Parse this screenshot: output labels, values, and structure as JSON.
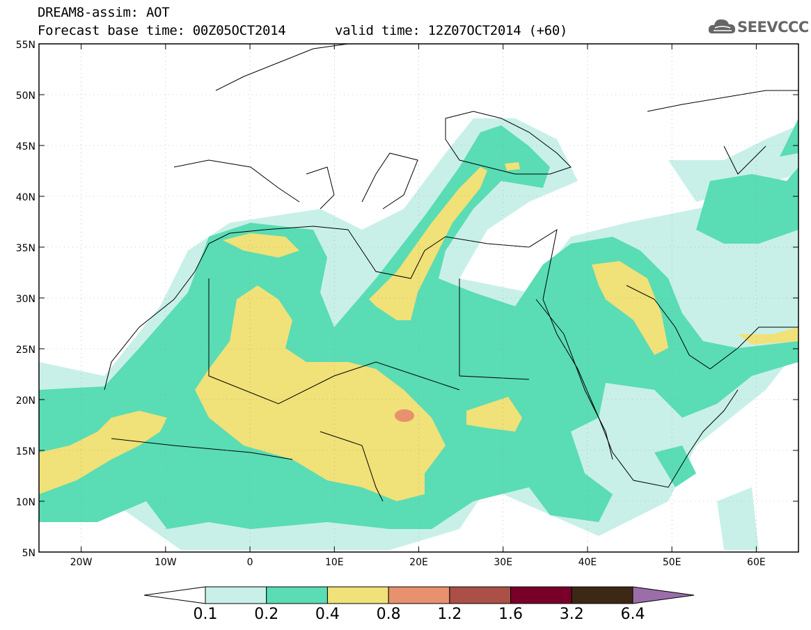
{
  "header": {
    "title_line1": "DREAM8-assim: AOT",
    "title_line2": "Forecast base time: 00Z05OCT2014",
    "valid_time": "valid time: 12Z07OCT2014 (+60)"
  },
  "logo": {
    "text": "SEEVCCC",
    "icon": "cloud-icon"
  },
  "map": {
    "extent": {
      "lon_min": -25,
      "lon_max": 65,
      "lat_min": 5,
      "lat_max": 55
    },
    "lat_labels": [
      "5N",
      "10N",
      "15N",
      "20N",
      "25N",
      "30N",
      "35N",
      "40N",
      "45N",
      "50N",
      "55N"
    ],
    "lat_values": [
      5,
      10,
      15,
      20,
      25,
      30,
      35,
      40,
      45,
      50,
      55
    ],
    "lon_labels": [
      "20W",
      "10W",
      "0",
      "10E",
      "20E",
      "30E",
      "40E",
      "50E",
      "60E"
    ],
    "lon_values": [
      -20,
      -10,
      0,
      10,
      20,
      30,
      40,
      50,
      60
    ],
    "gridlines": "dotted"
  },
  "colorbar": {
    "levels": [
      "0.1",
      "0.2",
      "0.4",
      "0.8",
      "1.2",
      "1.6",
      "3.2",
      "6.4"
    ],
    "colors": [
      "#c8f0e8",
      "#5adcb4",
      "#f0e178",
      "#e8916e",
      "#aa5046",
      "#780028",
      "#3c2814",
      "#9b6eaa"
    ],
    "extend_left_color": "#ffffff"
  }
}
